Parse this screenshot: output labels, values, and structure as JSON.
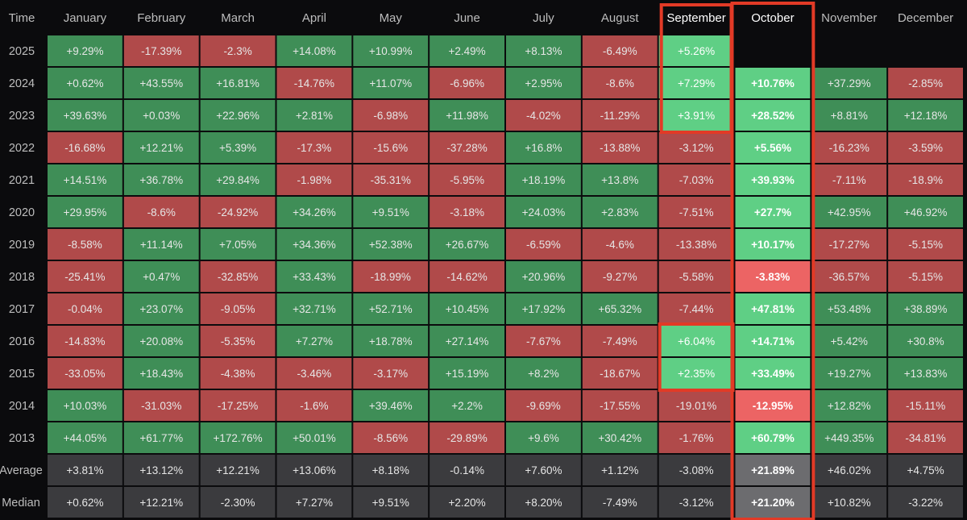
{
  "chart_data": {
    "type": "heatmap",
    "corner_label": "Time",
    "columns": [
      "January",
      "February",
      "March",
      "April",
      "May",
      "June",
      "July",
      "August",
      "September",
      "October",
      "November",
      "December"
    ],
    "rows": [
      {
        "label": "2025",
        "values": [
          "+9.29%",
          "-17.39%",
          "-2.3%",
          "+14.08%",
          "+10.99%",
          "+2.49%",
          "+8.13%",
          "-6.49%",
          "+5.26%",
          "",
          "",
          ""
        ]
      },
      {
        "label": "2024",
        "values": [
          "+0.62%",
          "+43.55%",
          "+16.81%",
          "-14.76%",
          "+11.07%",
          "-6.96%",
          "+2.95%",
          "-8.6%",
          "+7.29%",
          "+10.76%",
          "+37.29%",
          "-2.85%"
        ]
      },
      {
        "label": "2023",
        "values": [
          "+39.63%",
          "+0.03%",
          "+22.96%",
          "+2.81%",
          "-6.98%",
          "+11.98%",
          "-4.02%",
          "-11.29%",
          "+3.91%",
          "+28.52%",
          "+8.81%",
          "+12.18%"
        ]
      },
      {
        "label": "2022",
        "values": [
          "-16.68%",
          "+12.21%",
          "+5.39%",
          "-17.3%",
          "-15.6%",
          "-37.28%",
          "+16.8%",
          "-13.88%",
          "-3.12%",
          "+5.56%",
          "-16.23%",
          "-3.59%"
        ]
      },
      {
        "label": "2021",
        "values": [
          "+14.51%",
          "+36.78%",
          "+29.84%",
          "-1.98%",
          "-35.31%",
          "-5.95%",
          "+18.19%",
          "+13.8%",
          "-7.03%",
          "+39.93%",
          "-7.11%",
          "-18.9%"
        ]
      },
      {
        "label": "2020",
        "values": [
          "+29.95%",
          "-8.6%",
          "-24.92%",
          "+34.26%",
          "+9.51%",
          "-3.18%",
          "+24.03%",
          "+2.83%",
          "-7.51%",
          "+27.7%",
          "+42.95%",
          "+46.92%"
        ]
      },
      {
        "label": "2019",
        "values": [
          "-8.58%",
          "+11.14%",
          "+7.05%",
          "+34.36%",
          "+52.38%",
          "+26.67%",
          "-6.59%",
          "-4.6%",
          "-13.38%",
          "+10.17%",
          "-17.27%",
          "-5.15%"
        ]
      },
      {
        "label": "2018",
        "values": [
          "-25.41%",
          "+0.47%",
          "-32.85%",
          "+33.43%",
          "-18.99%",
          "-14.62%",
          "+20.96%",
          "-9.27%",
          "-5.58%",
          "-3.83%",
          "-36.57%",
          "-5.15%"
        ]
      },
      {
        "label": "2017",
        "values": [
          "-0.04%",
          "+23.07%",
          "-9.05%",
          "+32.71%",
          "+52.71%",
          "+10.45%",
          "+17.92%",
          "+65.32%",
          "-7.44%",
          "+47.81%",
          "+53.48%",
          "+38.89%"
        ]
      },
      {
        "label": "2016",
        "values": [
          "-14.83%",
          "+20.08%",
          "-5.35%",
          "+7.27%",
          "+18.78%",
          "+27.14%",
          "-7.67%",
          "-7.49%",
          "+6.04%",
          "+14.71%",
          "+5.42%",
          "+30.8%"
        ]
      },
      {
        "label": "2015",
        "values": [
          "-33.05%",
          "+18.43%",
          "-4.38%",
          "-3.46%",
          "-3.17%",
          "+15.19%",
          "+8.2%",
          "-18.67%",
          "+2.35%",
          "+33.49%",
          "+19.27%",
          "+13.83%"
        ]
      },
      {
        "label": "2014",
        "values": [
          "+10.03%",
          "-31.03%",
          "-17.25%",
          "-1.6%",
          "+39.46%",
          "+2.2%",
          "-9.69%",
          "-17.55%",
          "-19.01%",
          "-12.95%",
          "+12.82%",
          "-15.11%"
        ]
      },
      {
        "label": "2013",
        "values": [
          "+44.05%",
          "+61.77%",
          "+172.76%",
          "+50.01%",
          "-8.56%",
          "-29.89%",
          "+9.6%",
          "+30.42%",
          "-1.76%",
          "+60.79%",
          "+449.35%",
          "-34.81%"
        ]
      }
    ],
    "summary_rows": [
      {
        "label": "Average",
        "values": [
          "+3.81%",
          "+13.12%",
          "+12.21%",
          "+13.06%",
          "+8.18%",
          "-0.14%",
          "+7.60%",
          "+1.12%",
          "-3.08%",
          "+21.89%",
          "+46.02%",
          "+4.75%"
        ]
      },
      {
        "label": "Median",
        "values": [
          "+0.62%",
          "+12.21%",
          "-2.30%",
          "+7.27%",
          "+9.51%",
          "+2.20%",
          "+8.20%",
          "-7.49%",
          "-3.12%",
          "+21.20%",
          "+10.82%",
          "-3.22%"
        ]
      }
    ],
    "highlight_column": "October",
    "highlight_cells": [
      {
        "row": "2025",
        "column": "September"
      },
      {
        "row": "2024",
        "column": "September"
      },
      {
        "row": "2023",
        "column": "September"
      },
      {
        "row": "2016",
        "column": "September"
      },
      {
        "row": "2015",
        "column": "September"
      }
    ],
    "colors": {
      "positive": "#3f8e57",
      "negative": "#b04a4a",
      "positive_highlight": "#5fcf85",
      "negative_highlight": "#ec6464",
      "summary": "#3b3b3e",
      "summary_highlight": "#6c6c6f",
      "outline": "#e23a26",
      "background": "#0b0b0d",
      "text": "#e6e6e6",
      "header_text": "#bdbdbd"
    }
  }
}
